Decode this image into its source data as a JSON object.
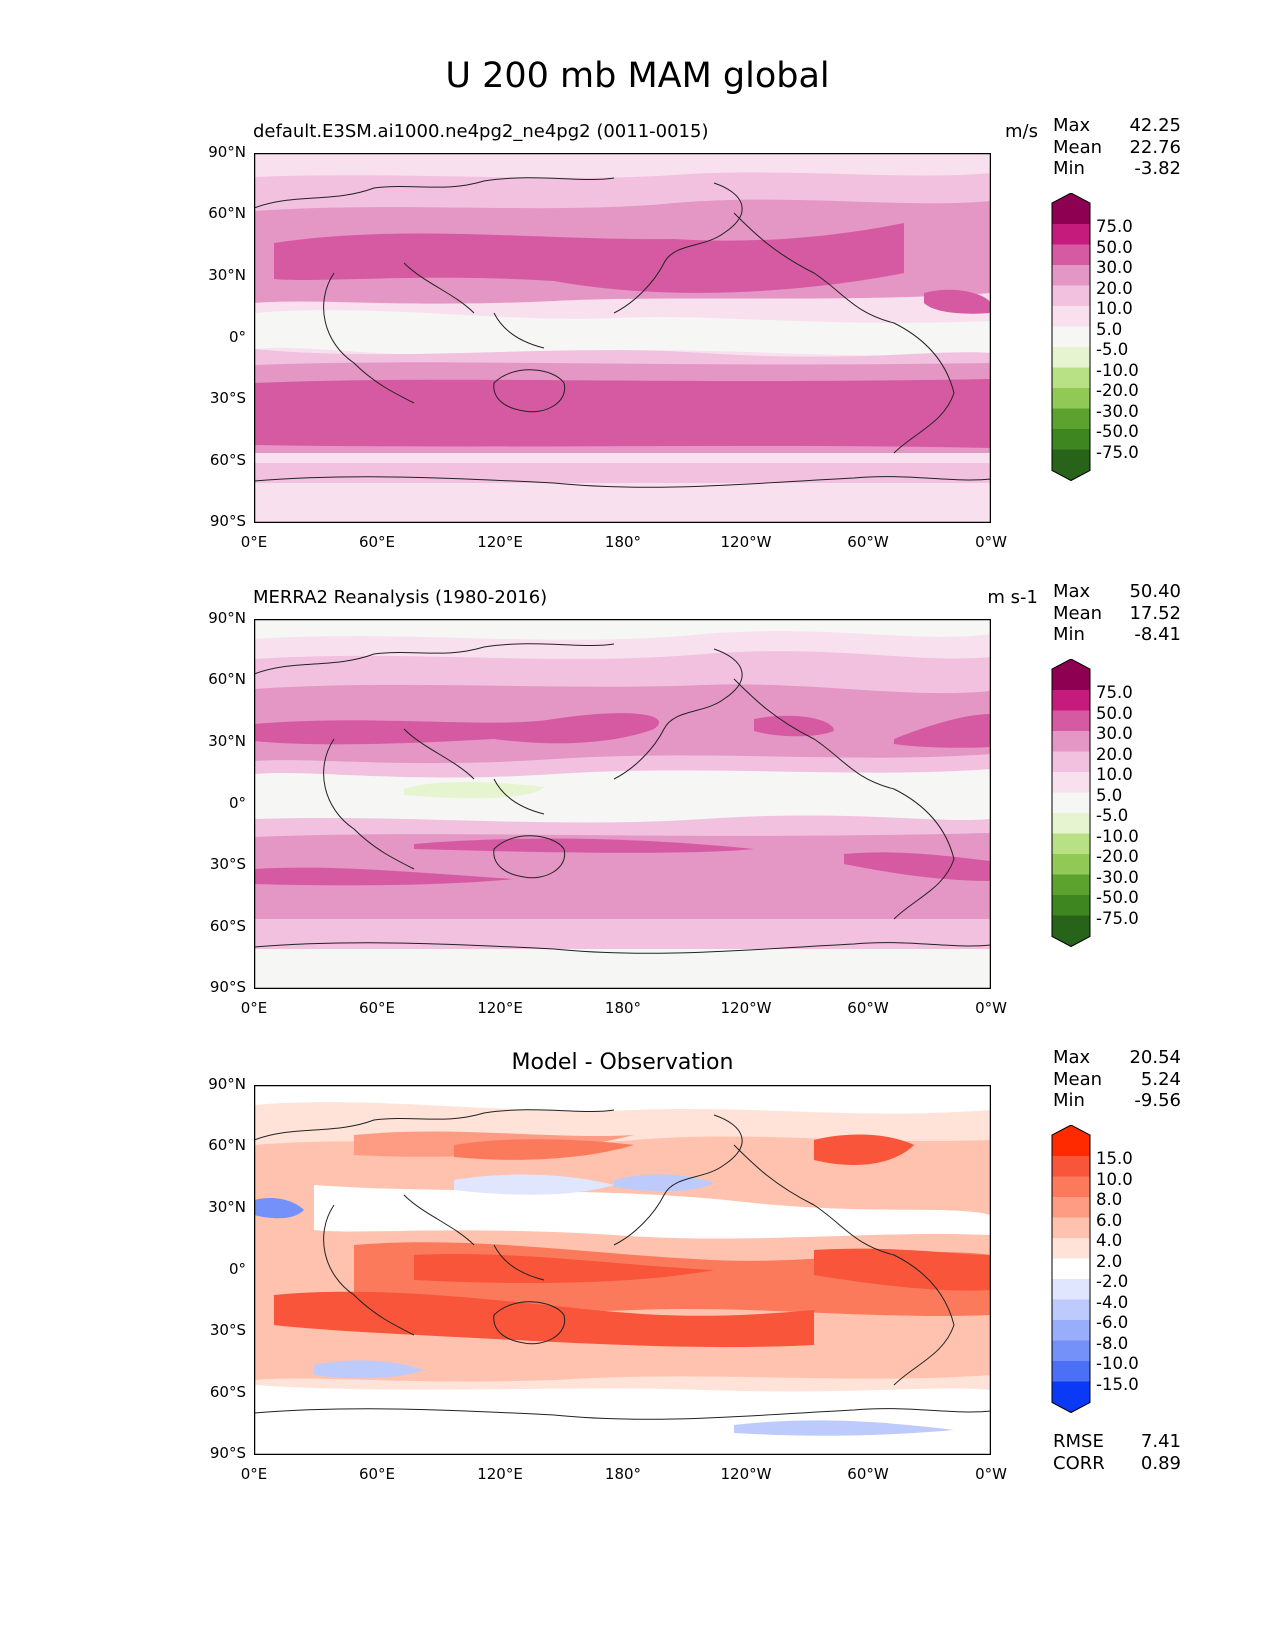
{
  "main_title": "U 200 mb MAM global",
  "axes": {
    "lat_labels": [
      "90°N",
      "60°N",
      "30°N",
      "0°",
      "30°S",
      "60°S",
      "90°S"
    ],
    "lon_labels": [
      "0°E",
      "60°E",
      "120°E",
      "180°",
      "120°W",
      "60°W",
      "0°W"
    ]
  },
  "panels": [
    {
      "title": "default.E3SM.ai1000.ne4pg2_ne4pg2 (0011-0015)",
      "units": "m/s",
      "stats": [
        {
          "label": "Max",
          "value": "42.25"
        },
        {
          "label": "Mean",
          "value": "22.76"
        },
        {
          "label": "Min",
          "value": "-3.82"
        }
      ],
      "colorbar_labels": [
        "75.0",
        "50.0",
        "30.0",
        "20.0",
        "10.0",
        "5.0",
        "-5.0",
        "-10.0",
        "-20.0",
        "-30.0",
        "-50.0",
        "-75.0"
      ],
      "colors": [
        "#8e0152",
        "#c51b7d",
        "#d65aa2",
        "#e496c4",
        "#f1c1df",
        "#f9e0ef",
        "#f6f6f4",
        "#e6f5d0",
        "#b8e186",
        "#91c957",
        "#5ba22e",
        "#3d8620",
        "#276419"
      ]
    },
    {
      "title": "MERRA2 Reanalysis (1980-2016)",
      "units": "m s-1",
      "stats": [
        {
          "label": "Max",
          "value": "50.40"
        },
        {
          "label": "Mean",
          "value": "17.52"
        },
        {
          "label": "Min",
          "value": "-8.41"
        }
      ],
      "colorbar_labels": [
        "75.0",
        "50.0",
        "30.0",
        "20.0",
        "10.0",
        "5.0",
        "-5.0",
        "-10.0",
        "-20.0",
        "-30.0",
        "-50.0",
        "-75.0"
      ],
      "colors": [
        "#8e0152",
        "#c51b7d",
        "#d65aa2",
        "#e496c4",
        "#f1c1df",
        "#f9e0ef",
        "#f6f6f4",
        "#e6f5d0",
        "#b8e186",
        "#91c957",
        "#5ba22e",
        "#3d8620",
        "#276419"
      ]
    },
    {
      "title": "Model - Observation",
      "units": "",
      "stats": [
        {
          "label": "Max",
          "value": "20.54"
        },
        {
          "label": "Mean",
          "value": "5.24"
        },
        {
          "label": "Min",
          "value": "-9.56"
        }
      ],
      "colorbar_labels": [
        "15.0",
        "10.0",
        "8.0",
        "6.0",
        "4.0",
        "2.0",
        "-2.0",
        "-4.0",
        "-6.0",
        "-8.0",
        "-10.0",
        "-15.0"
      ],
      "colors": [
        "#ff2a00",
        "#f8553a",
        "#fb7a5c",
        "#fd9c82",
        "#fec2ae",
        "#ffe3d8",
        "#ffffff",
        "#dfe6fd",
        "#bccafc",
        "#98aefb",
        "#7391f8",
        "#4b6ff6",
        "#0a3af6"
      ],
      "metrics": [
        {
          "label": "RMSE",
          "value": "7.41"
        },
        {
          "label": "CORR",
          "value": "0.89"
        }
      ]
    }
  ]
}
